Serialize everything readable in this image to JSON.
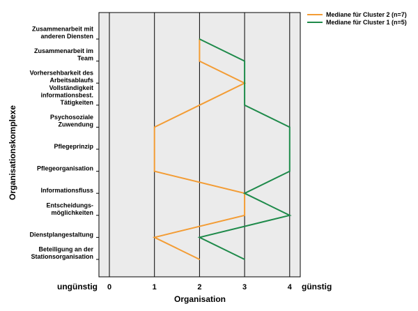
{
  "chart_data": {
    "type": "line",
    "orientation": "horizontal-profile",
    "xlabel": "Organisation",
    "ylabel": "Organisationskomplexe",
    "left_end_label": "ungünstig",
    "right_end_label": "günstig",
    "xlim": [
      -0.4,
      4.25
    ],
    "xticks": [
      0,
      1,
      2,
      3,
      4
    ],
    "categories": [
      [
        "Zusammenarbeit mit",
        "anderen Diensten"
      ],
      [
        "Zusammenarbeit im",
        "Team"
      ],
      [
        "Vorhersehbarkeit des",
        "Arbeitsablaufs"
      ],
      [
        "Vollständigkeit",
        "informationsbest.",
        "Tätigkeiten"
      ],
      [
        "Psychosoziale",
        "Zuwendung"
      ],
      [
        "Pflegeprinzip"
      ],
      [
        "Pflegeorganisation"
      ],
      [
        "Informationsfluss"
      ],
      [
        "Entscheidungs-",
        "möglichkeiten"
      ],
      [
        "Dienstplangestaltung"
      ],
      [
        "Beteiligung an der",
        "Stationsorganisation"
      ]
    ],
    "series": [
      {
        "name": "Mediane für Cluster 2 (n=7)",
        "color": "#f39c34",
        "values": [
          2,
          2,
          3,
          2,
          1,
          1,
          1,
          3,
          3,
          1,
          2
        ]
      },
      {
        "name": "Mediane für Cluster 1 (n=5)",
        "color": "#1e8a4a",
        "values": [
          2,
          3,
          3,
          3,
          4,
          4,
          4,
          3,
          4,
          2,
          3
        ]
      }
    ],
    "plot_background": "#ebebeb",
    "grid": "vertical lines at ticks",
    "legend": "top-right"
  }
}
